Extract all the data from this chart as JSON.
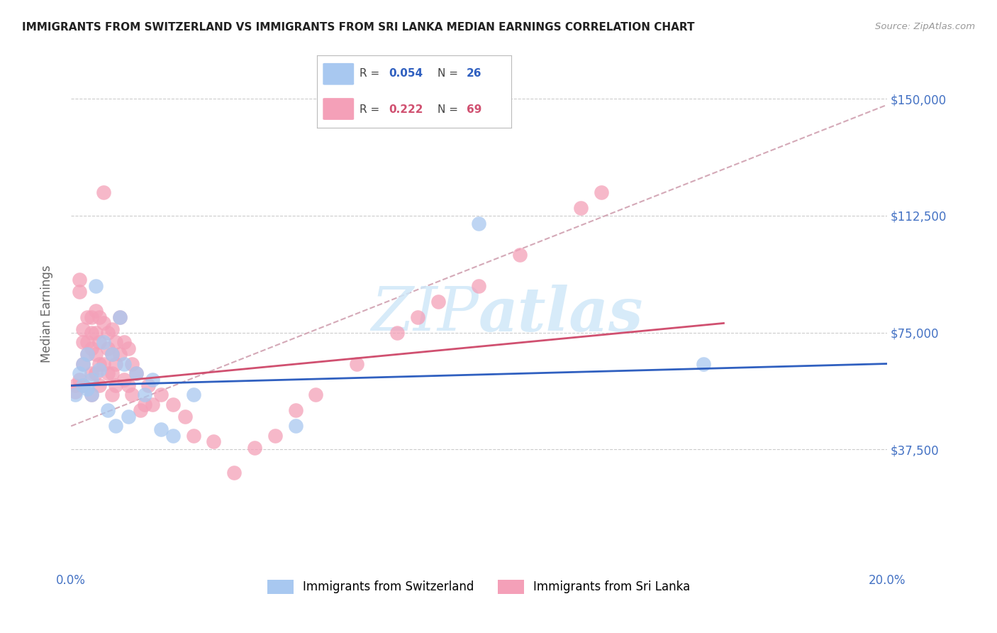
{
  "title": "IMMIGRANTS FROM SWITZERLAND VS IMMIGRANTS FROM SRI LANKA MEDIAN EARNINGS CORRELATION CHART",
  "source": "Source: ZipAtlas.com",
  "ylabel_label": "Median Earnings",
  "background_color": "#ffffff",
  "grid_color": "#cccccc",
  "axis_label_color": "#4472c4",
  "title_color": "#222222",
  "color_swiss": "#a8c8f0",
  "color_srilanka": "#f4a0b8",
  "color_swiss_line": "#3060c0",
  "color_srilanka_line": "#d05070",
  "color_dashed": "#d0a0b0",
  "watermark_color": "#d0e8f8",
  "swiss_line_x": [
    0.0,
    0.2
  ],
  "swiss_line_y": [
    58000,
    65000
  ],
  "srilanka_line_x": [
    0.0,
    0.16
  ],
  "srilanka_line_y": [
    58000,
    78000
  ],
  "dashed_line_x": [
    0.0,
    0.2
  ],
  "dashed_line_y": [
    45000,
    148000
  ],
  "swiss_x": [
    0.001,
    0.002,
    0.003,
    0.003,
    0.004,
    0.004,
    0.005,
    0.005,
    0.006,
    0.007,
    0.008,
    0.009,
    0.01,
    0.011,
    0.012,
    0.013,
    0.014,
    0.016,
    0.018,
    0.02,
    0.022,
    0.025,
    0.03,
    0.055,
    0.1,
    0.155
  ],
  "swiss_y": [
    55000,
    62000,
    58000,
    65000,
    57000,
    68000,
    60000,
    55000,
    90000,
    63000,
    72000,
    50000,
    68000,
    45000,
    80000,
    65000,
    48000,
    62000,
    55000,
    60000,
    44000,
    42000,
    55000,
    45000,
    110000,
    65000
  ],
  "srilanka_x": [
    0.001,
    0.001,
    0.002,
    0.002,
    0.002,
    0.003,
    0.003,
    0.003,
    0.003,
    0.004,
    0.004,
    0.004,
    0.005,
    0.005,
    0.005,
    0.005,
    0.005,
    0.006,
    0.006,
    0.006,
    0.006,
    0.007,
    0.007,
    0.007,
    0.007,
    0.008,
    0.008,
    0.008,
    0.009,
    0.009,
    0.009,
    0.01,
    0.01,
    0.01,
    0.01,
    0.011,
    0.011,
    0.011,
    0.012,
    0.012,
    0.013,
    0.013,
    0.014,
    0.014,
    0.015,
    0.015,
    0.016,
    0.017,
    0.018,
    0.019,
    0.02,
    0.022,
    0.025,
    0.028,
    0.03,
    0.035,
    0.04,
    0.045,
    0.05,
    0.055,
    0.06,
    0.07,
    0.08,
    0.085,
    0.09,
    0.1,
    0.11,
    0.125,
    0.13
  ],
  "srilanka_y": [
    58000,
    56000,
    92000,
    88000,
    60000,
    76000,
    72000,
    65000,
    58000,
    80000,
    72000,
    68000,
    80000,
    75000,
    70000,
    62000,
    55000,
    82000,
    75000,
    68000,
    62000,
    80000,
    72000,
    65000,
    58000,
    120000,
    78000,
    65000,
    75000,
    70000,
    62000,
    76000,
    68000,
    62000,
    55000,
    72000,
    65000,
    58000,
    80000,
    68000,
    72000,
    60000,
    70000,
    58000,
    65000,
    55000,
    62000,
    50000,
    52000,
    58000,
    52000,
    55000,
    52000,
    48000,
    42000,
    40000,
    30000,
    38000,
    42000,
    50000,
    55000,
    65000,
    75000,
    80000,
    85000,
    90000,
    100000,
    115000,
    120000
  ],
  "yticks": [
    0,
    37500,
    75000,
    112500,
    150000
  ],
  "ytick_labels_right": [
    "",
    "$37,500",
    "$75,000",
    "$112,500",
    "$150,000"
  ],
  "xtick_positions": [
    0.0,
    0.04,
    0.08,
    0.12,
    0.16,
    0.2
  ],
  "xtick_labels": [
    "0.0%",
    "",
    "",
    "",
    "",
    "20.0%"
  ],
  "x_min": 0.0,
  "x_max": 0.2,
  "y_min": 0,
  "y_max": 162000
}
